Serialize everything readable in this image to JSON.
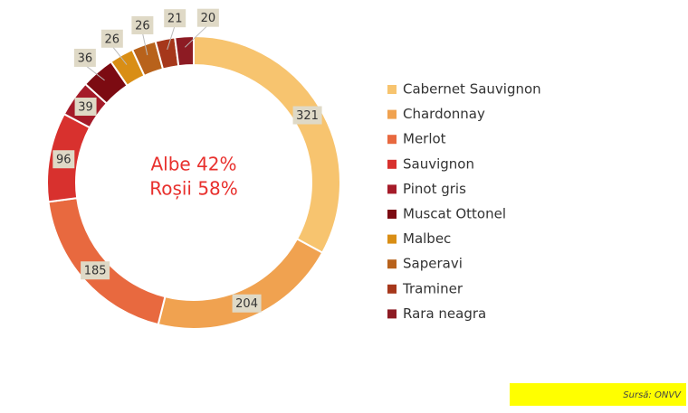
{
  "chart_data": {
    "type": "donut",
    "categories": [
      "Cabernet Sauvignon",
      "Chardonnay",
      "Merlot",
      "Sauvignon",
      "Pinot gris",
      "Muscat Ottonel",
      "Malbec",
      "Saperavi",
      "Traminer",
      "Rara neagra"
    ],
    "values": [
      321,
      204,
      185,
      96,
      39,
      36,
      26,
      26,
      21,
      20
    ],
    "colors": [
      "#f7c46f",
      "#f0a250",
      "#e8693f",
      "#d8312e",
      "#a51b29",
      "#7c0b12",
      "#d98e15",
      "#b8621b",
      "#a6371b",
      "#8d1b23"
    ],
    "center_labels": [
      "Albe 42%",
      "Roșii 58%"
    ],
    "source": "Sursă: ONVV"
  }
}
